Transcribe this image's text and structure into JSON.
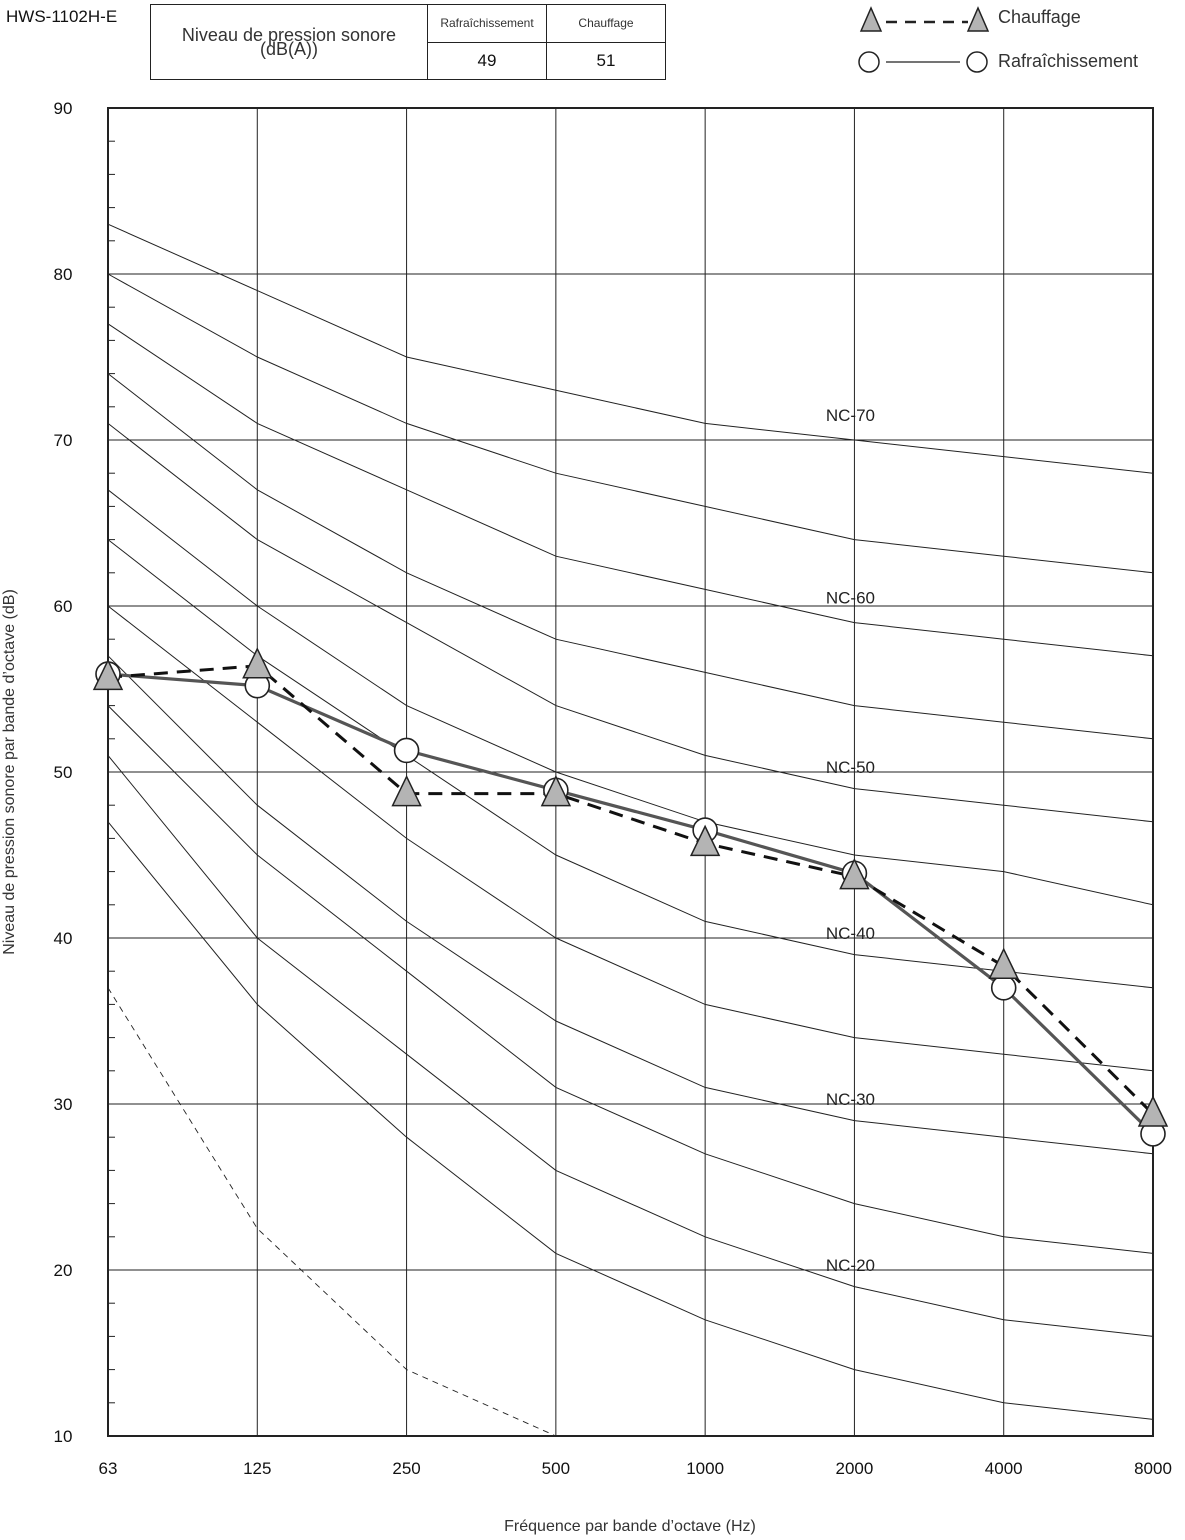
{
  "model": "HWS-1102H-E",
  "level_table": {
    "header": "Niveau de pression sonore\n(dB(A))",
    "columns": [
      "Rafraîchissement",
      "Chauffage"
    ],
    "values": [
      "49",
      "51"
    ]
  },
  "legend": {
    "heating_label": "Chauffage",
    "cooling_label": "Rafraîchissement"
  },
  "chart_data": {
    "type": "line",
    "x": [
      "63",
      "125",
      "250",
      "500",
      "1000",
      "2000",
      "4000",
      "8000"
    ],
    "xlabel": "Fréquence par bande d’octave (Hz)",
    "ylabel": "Niveau de pression sonore par bande d’octave (dB)",
    "ylim": [
      10,
      90
    ],
    "yticks": [
      10,
      20,
      30,
      40,
      50,
      60,
      70,
      80,
      90
    ],
    "grid": true,
    "legend_position": "top-right",
    "series": [
      {
        "name": "Chauffage",
        "style": "dashed",
        "marker": "triangle",
        "color": "#222222",
        "values": [
          55.7,
          56.4,
          48.7,
          48.7,
          45.7,
          43.7,
          38.3,
          29.4
        ]
      },
      {
        "name": "Rafraîchissement",
        "style": "solid",
        "marker": "circle",
        "color": "#555555",
        "values": [
          55.9,
          55.2,
          51.3,
          48.9,
          46.5,
          43.9,
          37.0,
          28.2
        ]
      }
    ],
    "nc_curves": [
      {
        "label": "NC-70",
        "values": [
          83,
          79,
          75,
          73,
          71,
          70,
          69,
          68
        ]
      },
      {
        "label": "",
        "values": [
          80,
          75,
          71,
          68,
          66,
          64,
          63,
          62
        ]
      },
      {
        "label": "NC-60",
        "values": [
          77,
          71,
          67,
          63,
          61,
          59,
          58,
          57
        ]
      },
      {
        "label": "",
        "values": [
          74,
          67,
          62,
          58,
          56,
          54,
          53,
          52
        ]
      },
      {
        "label": "NC-50",
        "values": [
          71,
          64,
          59,
          54,
          51,
          49,
          48,
          47
        ]
      },
      {
        "label": "",
        "values": [
          67,
          60,
          54,
          50,
          47,
          45,
          44,
          42
        ]
      },
      {
        "label": "NC-40",
        "values": [
          64,
          57,
          51,
          45,
          41,
          39,
          38,
          37
        ]
      },
      {
        "label": "",
        "values": [
          60,
          53,
          46,
          40,
          36,
          34,
          33,
          32
        ]
      },
      {
        "label": "NC-30",
        "values": [
          57,
          48,
          41,
          35,
          31,
          29,
          28,
          27
        ]
      },
      {
        "label": "",
        "values": [
          54,
          45,
          38,
          31,
          27,
          24,
          22,
          21
        ]
      },
      {
        "label": "NC-20",
        "values": [
          51,
          40,
          33,
          26,
          22,
          19,
          17,
          16
        ]
      },
      {
        "label": "",
        "values": [
          47,
          36,
          28,
          21,
          17,
          14,
          12,
          11
        ]
      }
    ],
    "threshold_curve": {
      "style": "dashed",
      "values": [
        37,
        22.5,
        14,
        10
      ]
    }
  }
}
